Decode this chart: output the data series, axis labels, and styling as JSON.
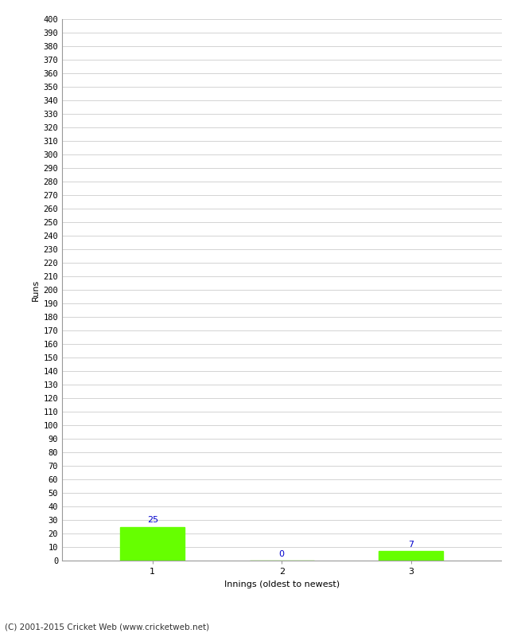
{
  "categories": [
    1,
    2,
    3
  ],
  "values": [
    25,
    0,
    7
  ],
  "bar_color": "#66ff00",
  "value_label_color": "#0000cc",
  "xlabel": "Innings (oldest to newest)",
  "ylabel": "Runs",
  "ylim": [
    0,
    400
  ],
  "ytick_step": 10,
  "background_color": "#ffffff",
  "grid_color": "#cccccc",
  "footer_text": "(C) 2001-2015 Cricket Web (www.cricketweb.net)",
  "bar_width": 0.5
}
